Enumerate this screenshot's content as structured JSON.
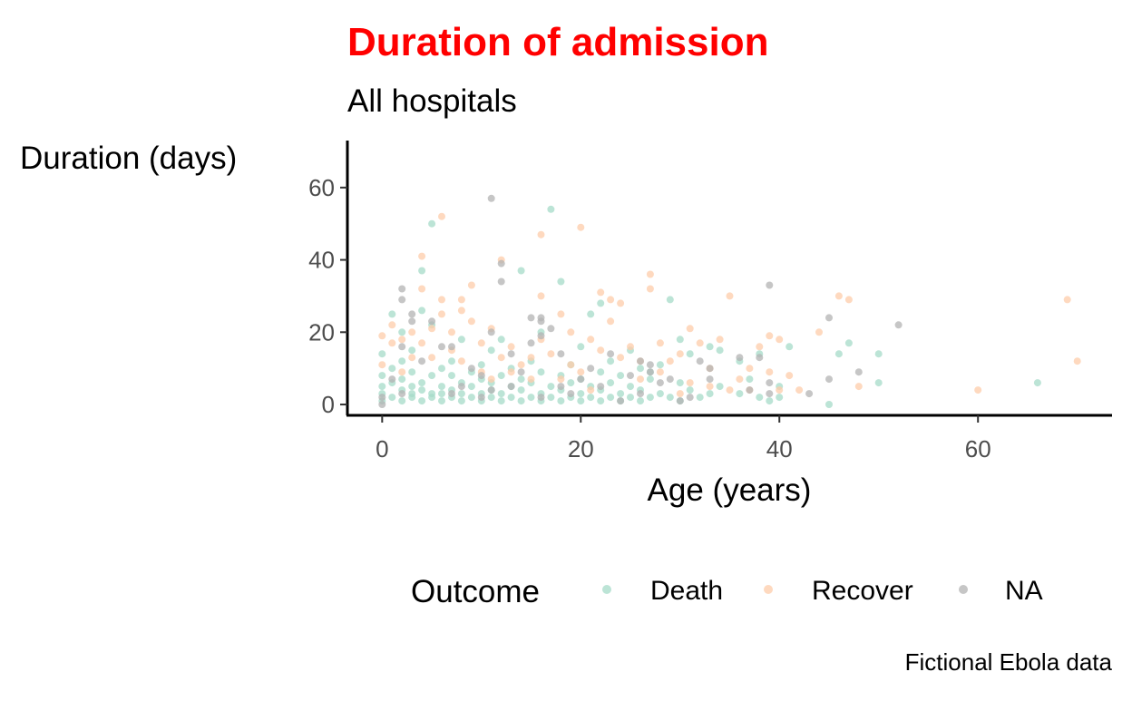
{
  "colors": {
    "title": "#ff0000",
    "Death": "#a6dbc8",
    "Recover": "#fdccaa",
    "NA": "#b3b3b3",
    "axis": "#000000",
    "tick_text": "#4d4d4d"
  },
  "chart_data": {
    "type": "scatter",
    "title": "Duration of admission",
    "subtitle": "All hospitals",
    "xlabel": "Age (years)",
    "ylabel": "Duration (days)",
    "caption": "Fictional Ebola data",
    "xlim": [
      -3.5,
      73.5
    ],
    "ylim": [
      -3,
      73
    ],
    "xticks": [
      0,
      20,
      40,
      60
    ],
    "yticks": [
      0,
      20,
      40,
      60
    ],
    "xtick_labels": [
      "0",
      "20",
      "40",
      "60"
    ],
    "ytick_labels": [
      "0",
      "20",
      "40",
      "60"
    ],
    "grid": false,
    "legend": {
      "title": "Outcome",
      "position": "bottom",
      "entries": [
        "Death",
        "Recover",
        "NA"
      ]
    },
    "series": [
      {
        "name": "Death",
        "points": [
          [
            0,
            1
          ],
          [
            0,
            3
          ],
          [
            0,
            5
          ],
          [
            0,
            8
          ],
          [
            0,
            14
          ],
          [
            1,
            2
          ],
          [
            1,
            6
          ],
          [
            1,
            10
          ],
          [
            1,
            25
          ],
          [
            2,
            1
          ],
          [
            2,
            4
          ],
          [
            2,
            7
          ],
          [
            2,
            12
          ],
          [
            2,
            20
          ],
          [
            3,
            2
          ],
          [
            3,
            3
          ],
          [
            3,
            5
          ],
          [
            3,
            9
          ],
          [
            3,
            15
          ],
          [
            4,
            1
          ],
          [
            4,
            4
          ],
          [
            4,
            6
          ],
          [
            4,
            26
          ],
          [
            4,
            37
          ],
          [
            5,
            2
          ],
          [
            5,
            3
          ],
          [
            5,
            8
          ],
          [
            5,
            22
          ],
          [
            5,
            50
          ],
          [
            6,
            1
          ],
          [
            6,
            3
          ],
          [
            6,
            5
          ],
          [
            6,
            10
          ],
          [
            7,
            2
          ],
          [
            7,
            4
          ],
          [
            7,
            8
          ],
          [
            7,
            12
          ],
          [
            8,
            1
          ],
          [
            8,
            3
          ],
          [
            8,
            6
          ],
          [
            8,
            18
          ],
          [
            9,
            2
          ],
          [
            9,
            5
          ],
          [
            9,
            9
          ],
          [
            10,
            1
          ],
          [
            10,
            3
          ],
          [
            10,
            7
          ],
          [
            10,
            11
          ],
          [
            11,
            2
          ],
          [
            11,
            4
          ],
          [
            11,
            6
          ],
          [
            11,
            15
          ],
          [
            12,
            1
          ],
          [
            12,
            3
          ],
          [
            12,
            8
          ],
          [
            12,
            18
          ],
          [
            13,
            2
          ],
          [
            13,
            5
          ],
          [
            13,
            10
          ],
          [
            14,
            1
          ],
          [
            14,
            4
          ],
          [
            14,
            7
          ],
          [
            14,
            37
          ],
          [
            15,
            2
          ],
          [
            15,
            6
          ],
          [
            15,
            12
          ],
          [
            16,
            1
          ],
          [
            16,
            3
          ],
          [
            16,
            9
          ],
          [
            16,
            20
          ],
          [
            17,
            2
          ],
          [
            17,
            5
          ],
          [
            17,
            54
          ],
          [
            18,
            1
          ],
          [
            18,
            4
          ],
          [
            18,
            8
          ],
          [
            18,
            34
          ],
          [
            19,
            2
          ],
          [
            19,
            6
          ],
          [
            19,
            11
          ],
          [
            20,
            1
          ],
          [
            20,
            3
          ],
          [
            20,
            7
          ],
          [
            20,
            16
          ],
          [
            21,
            2
          ],
          [
            21,
            5
          ],
          [
            21,
            25
          ],
          [
            22,
            1
          ],
          [
            22,
            4
          ],
          [
            22,
            9
          ],
          [
            22,
            28
          ],
          [
            23,
            2
          ],
          [
            23,
            6
          ],
          [
            23,
            12
          ],
          [
            24,
            1
          ],
          [
            24,
            3
          ],
          [
            24,
            8
          ],
          [
            25,
            2
          ],
          [
            25,
            5
          ],
          [
            25,
            15
          ],
          [
            26,
            1
          ],
          [
            26,
            4
          ],
          [
            26,
            10
          ],
          [
            27,
            2
          ],
          [
            27,
            7
          ],
          [
            27,
            9
          ],
          [
            28,
            3
          ],
          [
            28,
            11
          ],
          [
            29,
            2
          ],
          [
            29,
            29
          ],
          [
            30,
            1
          ],
          [
            30,
            6
          ],
          [
            30,
            18
          ],
          [
            31,
            4
          ],
          [
            31,
            14
          ],
          [
            32,
            2
          ],
          [
            33,
            3
          ],
          [
            33,
            16
          ],
          [
            34,
            5
          ],
          [
            34,
            15
          ],
          [
            36,
            3
          ],
          [
            36,
            12
          ],
          [
            37,
            7
          ],
          [
            38,
            2
          ],
          [
            38,
            14
          ],
          [
            39,
            1
          ],
          [
            40,
            5
          ],
          [
            40,
            2
          ],
          [
            41,
            16
          ],
          [
            45,
            0
          ],
          [
            46,
            14
          ],
          [
            47,
            17
          ],
          [
            50,
            14
          ],
          [
            50,
            6
          ],
          [
            66,
            6
          ]
        ]
      },
      {
        "name": "Recover",
        "points": [
          [
            0,
            19
          ],
          [
            0,
            11
          ],
          [
            1,
            17
          ],
          [
            1,
            22
          ],
          [
            2,
            9
          ],
          [
            2,
            18
          ],
          [
            3,
            13
          ],
          [
            3,
            20
          ],
          [
            4,
            17
          ],
          [
            4,
            32
          ],
          [
            4,
            41
          ],
          [
            5,
            13
          ],
          [
            5,
            21
          ],
          [
            6,
            25
          ],
          [
            6,
            29
          ],
          [
            6,
            52
          ],
          [
            7,
            15
          ],
          [
            7,
            20
          ],
          [
            8,
            26
          ],
          [
            8,
            29
          ],
          [
            8,
            12
          ],
          [
            9,
            33
          ],
          [
            9,
            23
          ],
          [
            10,
            9
          ],
          [
            10,
            17
          ],
          [
            11,
            7
          ],
          [
            11,
            21
          ],
          [
            12,
            40
          ],
          [
            12,
            13
          ],
          [
            13,
            9
          ],
          [
            13,
            16
          ],
          [
            14,
            11
          ],
          [
            15,
            7
          ],
          [
            15,
            13
          ],
          [
            16,
            30
          ],
          [
            16,
            47
          ],
          [
            16,
            18
          ],
          [
            17,
            14
          ],
          [
            18,
            25
          ],
          [
            18,
            7
          ],
          [
            19,
            20
          ],
          [
            19,
            11
          ],
          [
            20,
            49
          ],
          [
            20,
            9
          ],
          [
            21,
            4
          ],
          [
            21,
            18
          ],
          [
            22,
            31
          ],
          [
            22,
            15
          ],
          [
            23,
            29
          ],
          [
            23,
            23
          ],
          [
            24,
            28
          ],
          [
            24,
            13
          ],
          [
            25,
            16
          ],
          [
            26,
            7
          ],
          [
            26,
            12
          ],
          [
            27,
            36
          ],
          [
            27,
            32
          ],
          [
            28,
            9
          ],
          [
            28,
            17
          ],
          [
            29,
            12
          ],
          [
            30,
            3
          ],
          [
            30,
            14
          ],
          [
            31,
            21
          ],
          [
            31,
            6
          ],
          [
            32,
            17
          ],
          [
            33,
            5
          ],
          [
            33,
            10
          ],
          [
            34,
            18
          ],
          [
            35,
            4
          ],
          [
            35,
            30
          ],
          [
            36,
            7
          ],
          [
            37,
            10
          ],
          [
            37,
            4
          ],
          [
            38,
            16
          ],
          [
            39,
            19
          ],
          [
            39,
            9
          ],
          [
            40,
            18
          ],
          [
            40,
            4
          ],
          [
            41,
            8
          ],
          [
            42,
            4
          ],
          [
            44,
            20
          ],
          [
            46,
            30
          ],
          [
            47,
            29
          ],
          [
            48,
            5
          ],
          [
            60,
            4
          ],
          [
            69,
            29
          ],
          [
            70,
            12
          ]
        ]
      },
      {
        "name": "NA",
        "points": [
          [
            0,
            0
          ],
          [
            0,
            2
          ],
          [
            1,
            7
          ],
          [
            2,
            3
          ],
          [
            2,
            16
          ],
          [
            2,
            29
          ],
          [
            2,
            32
          ],
          [
            3,
            23
          ],
          [
            3,
            25
          ],
          [
            4,
            12
          ],
          [
            5,
            23
          ],
          [
            6,
            16
          ],
          [
            7,
            3
          ],
          [
            7,
            16
          ],
          [
            8,
            5
          ],
          [
            9,
            10
          ],
          [
            10,
            8
          ],
          [
            10,
            2
          ],
          [
            11,
            57
          ],
          [
            11,
            20
          ],
          [
            11,
            4
          ],
          [
            12,
            39
          ],
          [
            12,
            34
          ],
          [
            13,
            5
          ],
          [
            13,
            14
          ],
          [
            14,
            9
          ],
          [
            15,
            24
          ],
          [
            15,
            17
          ],
          [
            16,
            24
          ],
          [
            16,
            23
          ],
          [
            16,
            19
          ],
          [
            16,
            2
          ],
          [
            17,
            21
          ],
          [
            18,
            14
          ],
          [
            18,
            5
          ],
          [
            19,
            3
          ],
          [
            20,
            7
          ],
          [
            21,
            10
          ],
          [
            22,
            5
          ],
          [
            23,
            14
          ],
          [
            24,
            1
          ],
          [
            25,
            8
          ],
          [
            26,
            12
          ],
          [
            26,
            3
          ],
          [
            27,
            11
          ],
          [
            27,
            9
          ],
          [
            28,
            6
          ],
          [
            29,
            7
          ],
          [
            30,
            1
          ],
          [
            31,
            2
          ],
          [
            32,
            12
          ],
          [
            33,
            10
          ],
          [
            33,
            7
          ],
          [
            36,
            13
          ],
          [
            37,
            4
          ],
          [
            38,
            13
          ],
          [
            39,
            33
          ],
          [
            39,
            6
          ],
          [
            39,
            3
          ],
          [
            43,
            3
          ],
          [
            45,
            24
          ],
          [
            45,
            7
          ],
          [
            48,
            9
          ],
          [
            52,
            22
          ]
        ]
      }
    ]
  }
}
